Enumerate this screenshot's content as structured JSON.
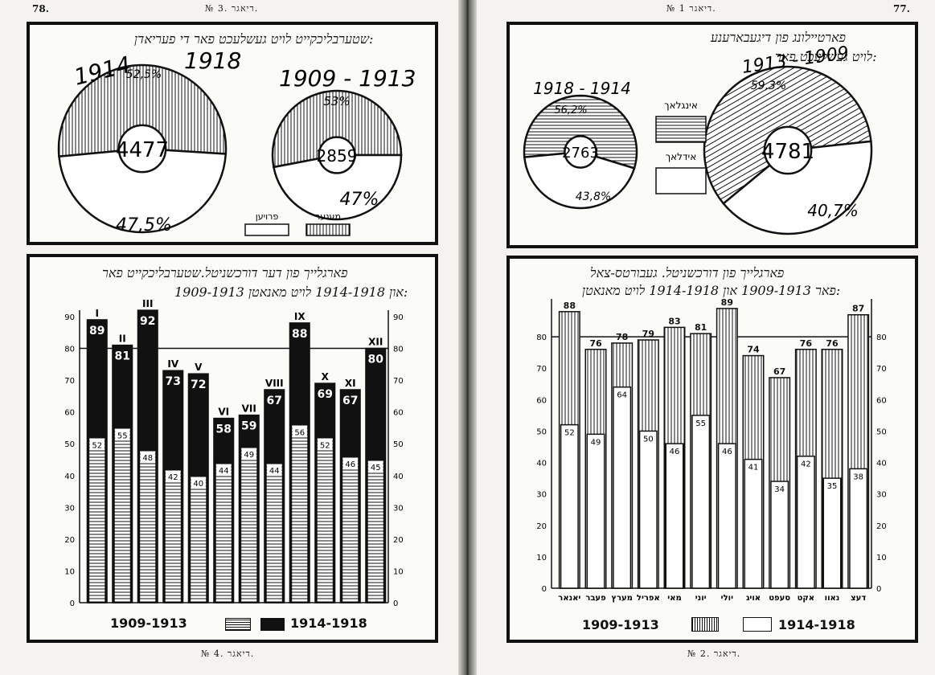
{
  "left_page": {
    "page_number": "78.",
    "heading": "№ 3. דיאגר.",
    "caption": "№ 4. דיאגר.",
    "pie_panel": {
      "title": "שטערבליכקייט לויט געשלעכט פאר די פעריאדן:"
    },
    "bar_panel": {
      "title_line1": "פארגלייך פון דער דורכשניטל.שטערבליכקייט פאר",
      "title_line2": "1909-1913 און 1914-1918 לויט מאנאטן:"
    }
  },
  "right_page": {
    "page_number": "77.",
    "heading": "№ 1 דיאגר.",
    "caption": "№ 2. דיאגר.",
    "pie_panel": {
      "title_line1": "פארטיילונג פון דיגעבארענע",
      "title_line2": "לויט געשלעכט פאר:"
    },
    "bar_panel": {
      "title_line1": "פארגלייך פון דורכשניטל. געבורטס-צאל",
      "title_line2": "פאר 1909-1913 און 1914-1918 לויט מאנאטן:"
    }
  },
  "chart_data": [
    {
      "id": "left-pies",
      "type": "pie",
      "legend": [
        "פרויען",
        "מענער"
      ],
      "pies": [
        {
          "period": "1914 - 1918",
          "period_left": "1914",
          "period_right": "1918",
          "total": 4477,
          "slices": [
            {
              "label": "52,5%",
              "value": 52.5,
              "pattern": "vertical"
            },
            {
              "label": "47,5%",
              "value": 47.5,
              "pattern": "plain"
            }
          ]
        },
        {
          "period": "1909 - 1913",
          "period_left": "1909",
          "period_right": "1913",
          "total": 2859,
          "slices": [
            {
              "label": "53%",
              "value": 53,
              "pattern": "vertical"
            },
            {
              "label": "47%",
              "value": 47,
              "pattern": "plain"
            }
          ]
        }
      ]
    },
    {
      "id": "left-bars",
      "type": "bar",
      "categories": [
        "I",
        "II",
        "III",
        "IV",
        "V",
        "VI",
        "VII",
        "VIII",
        "IX",
        "X",
        "XI",
        "XII"
      ],
      "series": [
        {
          "name": "1909-1913",
          "values": [
            52,
            55,
            48,
            42,
            40,
            44,
            49,
            44,
            56,
            52,
            46,
            45
          ]
        },
        {
          "name": "1914-1918",
          "values": [
            89,
            81,
            92,
            73,
            72,
            58,
            59,
            67,
            88,
            69,
            67,
            80
          ]
        }
      ],
      "yticks": [
        0,
        10,
        20,
        30,
        40,
        50,
        60,
        70,
        80,
        90
      ],
      "ylim": [
        0,
        90
      ],
      "legend": [
        "1909-1913",
        "1914-1918"
      ]
    },
    {
      "id": "right-pies",
      "type": "pie",
      "legend": [
        "אינגלאך",
        "אידלאך"
      ],
      "pies": [
        {
          "period": "1918 - 1914",
          "total": 2763,
          "slices": [
            {
              "label": "56,2%",
              "value": 56.2,
              "pattern": "horizontal"
            },
            {
              "label": "43,8%",
              "value": 43.8,
              "pattern": "plain"
            }
          ]
        },
        {
          "period": "1913 - 1909",
          "total": 4781,
          "slices": [
            {
              "label": "59,3%",
              "value": 59.3,
              "pattern": "diagonal"
            },
            {
              "label": "40,7%",
              "value": 40.7,
              "pattern": "plain"
            }
          ]
        }
      ]
    },
    {
      "id": "right-bars",
      "type": "bar",
      "categories": [
        "יאנאר",
        "פעבר",
        "מערץ",
        "אפריל",
        "מאי",
        "יוני",
        "יולי",
        "אויג",
        "סעפט",
        "אקט",
        "נאוו",
        "דעצ"
      ],
      "series": [
        {
          "name": "1909-1913",
          "values": [
            88,
            76,
            78,
            79,
            83,
            81,
            89,
            74,
            67,
            76,
            76,
            87
          ]
        },
        {
          "name": "1914-1918",
          "values": [
            52,
            49,
            64,
            50,
            46,
            55,
            46,
            41,
            34,
            42,
            35,
            38
          ]
        }
      ],
      "yticks": [
        0,
        10,
        20,
        30,
        40,
        50,
        60,
        70,
        80
      ],
      "ylim": [
        0,
        90
      ],
      "legend": [
        "1909-1913",
        "1914-1918"
      ]
    }
  ]
}
